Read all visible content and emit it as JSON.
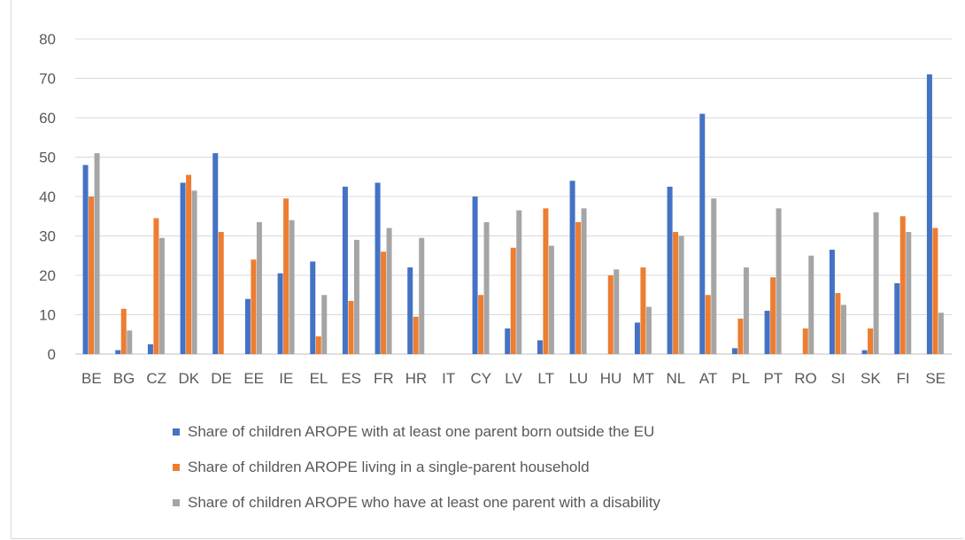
{
  "chart_data": {
    "type": "bar",
    "categories": [
      "BE",
      "BG",
      "CZ",
      "DK",
      "DE",
      "EE",
      "IE",
      "EL",
      "ES",
      "FR",
      "HR",
      "IT",
      "CY",
      "LV",
      "LT",
      "LU",
      "HU",
      "MT",
      "NL",
      "AT",
      "PL",
      "PT",
      "RO",
      "SI",
      "SK",
      "FI",
      "SE"
    ],
    "series": [
      {
        "name": "Share of children AROPE with at least one parent born outside the EU",
        "color": "#4472c4",
        "values": [
          48,
          1,
          2.5,
          43.5,
          51,
          14,
          20.5,
          23.5,
          42.5,
          43.5,
          22,
          0,
          40,
          6.5,
          3.5,
          44,
          0,
          8,
          42.5,
          61,
          1.5,
          11,
          0,
          26.5,
          1,
          18,
          71
        ]
      },
      {
        "name": "Share of children AROPE living in a single-parent household",
        "color": "#ed7d31",
        "values": [
          40,
          11.5,
          34.5,
          45.5,
          31,
          24,
          39.5,
          4.5,
          13.5,
          26,
          9.5,
          0,
          15,
          27,
          37,
          33.5,
          20,
          22,
          31,
          15,
          9,
          19.5,
          6.5,
          15.5,
          6.5,
          35,
          32
        ]
      },
      {
        "name": "Share of children AROPE who have at least one parent with a disability",
        "color": "#a5a5a5",
        "values": [
          51,
          6,
          29.5,
          41.5,
          0,
          33.5,
          34,
          15,
          29,
          32,
          29.5,
          0,
          33.5,
          36.5,
          27.5,
          37,
          21.5,
          12,
          30,
          39.5,
          22,
          37,
          25,
          12.5,
          36,
          31,
          10.5
        ]
      }
    ],
    "yticks": [
      "0",
      "10",
      "20",
      "30",
      "40",
      "50",
      "60",
      "70",
      "80"
    ],
    "ylim": [
      0,
      80
    ],
    "grid": true,
    "legend_position": "bottom"
  }
}
